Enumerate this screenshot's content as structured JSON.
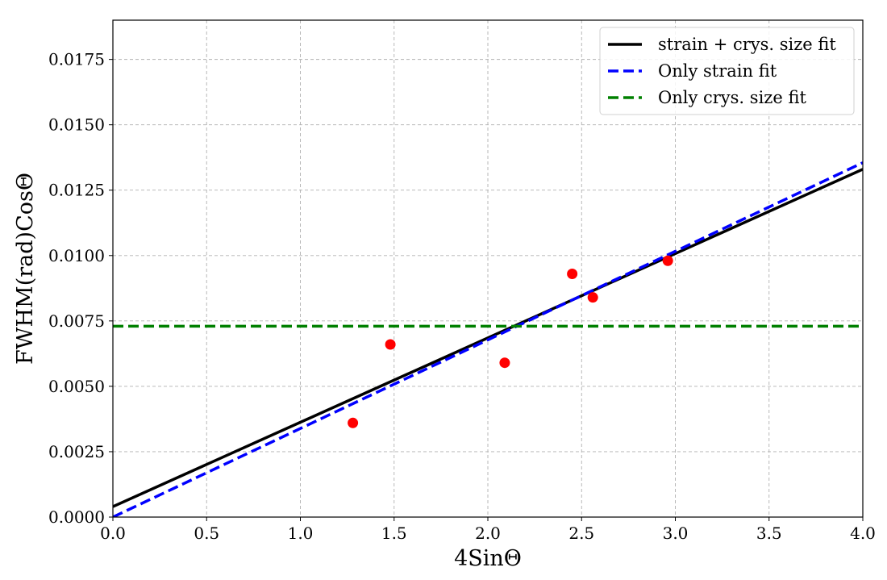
{
  "chart_data": {
    "type": "scatter",
    "title": "",
    "xlabel": "4SinΘ",
    "ylabel": "FWHM(rad)CosΘ",
    "xlim": [
      0.0,
      4.0
    ],
    "ylim": [
      0.0,
      0.019
    ],
    "x_ticks": [
      "0.0",
      "0.5",
      "1.0",
      "1.5",
      "2.0",
      "2.5",
      "3.0",
      "3.5",
      "4.0"
    ],
    "y_ticks": [
      "0.0000",
      "0.0025",
      "0.0050",
      "0.0075",
      "0.0100",
      "0.0125",
      "0.0150",
      "0.0175"
    ],
    "grid": true,
    "legend_position": "top-right",
    "points": {
      "color": "#ff0000",
      "x": [
        1.28,
        1.48,
        2.09,
        2.45,
        2.56,
        2.96
      ],
      "y": [
        0.0036,
        0.0066,
        0.0059,
        0.0093,
        0.0084,
        0.0098
      ]
    },
    "series": [
      {
        "name": "strain + crys. size fit",
        "style": "solid",
        "color": "#000000",
        "x": [
          0.0,
          4.0
        ],
        "y": [
          0.0004,
          0.0133
        ]
      },
      {
        "name": "Only strain fit",
        "style": "dashed",
        "color": "#0000ff",
        "x": [
          0.0,
          4.0
        ],
        "y": [
          0.0,
          0.01355
        ]
      },
      {
        "name": "Only crys. size fit",
        "style": "dashed",
        "color": "#008000",
        "x": [
          0.0,
          4.0
        ],
        "y": [
          0.0073,
          0.0073
        ]
      }
    ]
  }
}
